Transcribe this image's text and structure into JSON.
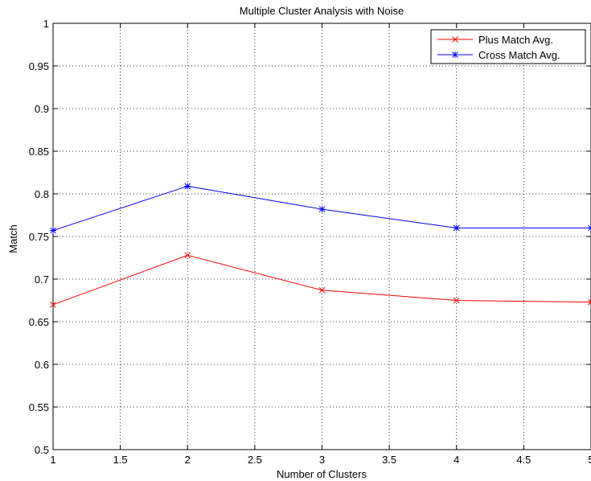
{
  "chart_data": {
    "type": "line",
    "title": "Multiple Cluster Analysis with Noise",
    "xlabel": "Number of Clusters",
    "ylabel": "Match",
    "xlim": [
      1,
      5
    ],
    "ylim": [
      0.5,
      1
    ],
    "x_ticks": [
      1,
      1.5,
      2,
      2.5,
      3,
      3.5,
      4,
      4.5,
      5
    ],
    "y_ticks": [
      0.5,
      0.55,
      0.6,
      0.65,
      0.7,
      0.75,
      0.8,
      0.85,
      0.9,
      0.95,
      1
    ],
    "x_tick_labels": [
      "1",
      "1.5",
      "2",
      "2.5",
      "3",
      "3.5",
      "4",
      "4.5",
      "5"
    ],
    "y_tick_labels": [
      "0.5",
      "0.55",
      "0.6",
      "0.65",
      "0.7",
      "0.75",
      "0.8",
      "0.85",
      "0.9",
      "0.95",
      "1"
    ],
    "grid": true,
    "legend_position": "top-right",
    "x": [
      1,
      2,
      3,
      4,
      5
    ],
    "series": [
      {
        "name": "Plus Match Avg.",
        "values": [
          0.67,
          0.728,
          0.687,
          0.675,
          0.673
        ],
        "color": "#ff0000",
        "marker": "x"
      },
      {
        "name": "Cross Match Avg.",
        "values": [
          0.757,
          0.809,
          0.782,
          0.76,
          0.76
        ],
        "color": "#0000ff",
        "marker": "asterisk"
      }
    ]
  }
}
